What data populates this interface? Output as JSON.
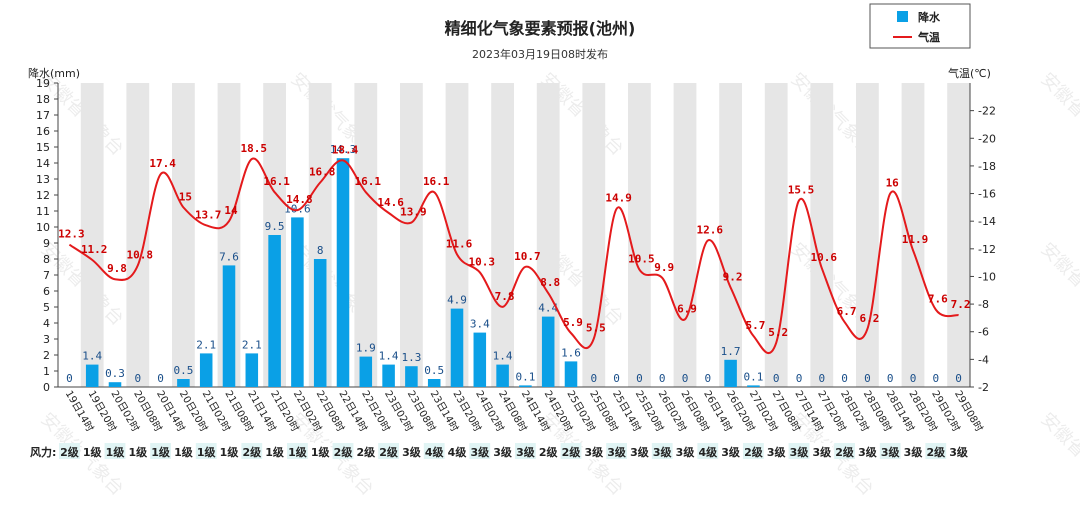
{
  "chart_data": {
    "type": "bar",
    "title": "精细化气象要素预报(池州)",
    "subtitle": "2023年03月19日08时发布",
    "left_axis_label": "降水(mm)",
    "right_axis_label": "气温(℃)",
    "left_ylim": [
      0,
      19
    ],
    "right_ylim": [
      2,
      24
    ],
    "left_ticks": [
      0,
      1,
      2,
      3,
      4,
      5,
      6,
      7,
      8,
      9,
      10,
      11,
      12,
      13,
      14,
      15,
      16,
      17,
      18,
      19
    ],
    "right_ticks": [
      2,
      4,
      6,
      8,
      10,
      12,
      14,
      16,
      18,
      20,
      22
    ],
    "categories": [
      "19日14时",
      "19日20时",
      "20日02时",
      "20日08时",
      "20日14时",
      "20日20时",
      "21日02时",
      "21日08时",
      "21日14时",
      "21日20时",
      "22日02时",
      "22日08时",
      "22日14时",
      "22日20时",
      "23日02时",
      "23日08时",
      "23日14时",
      "23日20时",
      "24日02时",
      "24日08时",
      "24日14时",
      "24日20时",
      "25日02时",
      "25日08时",
      "25日14时",
      "25日20时",
      "26日02时",
      "26日08时",
      "26日14时",
      "26日20时",
      "27日02时",
      "27日08时",
      "27日14时",
      "27日20时",
      "28日02时",
      "28日08时",
      "28日14时",
      "28日20时",
      "29日02时",
      "29日08时"
    ],
    "series": [
      {
        "name": "降水",
        "kind": "bar",
        "color": "#0aa0e6",
        "values": [
          0,
          1.4,
          0.3,
          0,
          0,
          0.5,
          2.1,
          7.6,
          2.1,
          9.5,
          10.6,
          8,
          14.3,
          1.9,
          1.4,
          1.3,
          0.5,
          4.9,
          3.4,
          1.4,
          0.1,
          4.4,
          1.6,
          0,
          0,
          0,
          0,
          0,
          0,
          1.7,
          0.1,
          0,
          0,
          0,
          0,
          0,
          0,
          0,
          0,
          0
        ]
      },
      {
        "name": "气温",
        "kind": "line",
        "color": "#e41a1c",
        "values": [
          12.3,
          11.2,
          9.8,
          10.8,
          17.4,
          15,
          13.7,
          14,
          18.5,
          16.1,
          14.8,
          16.8,
          18.4,
          16.1,
          14.6,
          13.9,
          16.1,
          11.6,
          10.3,
          7.8,
          10.7,
          8.8,
          5.9,
          5.5,
          14.9,
          10.5,
          9.9,
          6.9,
          12.6,
          9.2,
          5.7,
          5.2,
          15.5,
          10.6,
          6.7,
          6.2,
          16,
          11.9,
          7.6,
          7.2
        ]
      }
    ],
    "precip_labels": [
      "0",
      "1.4",
      "0.3",
      "0",
      "0",
      "0.5",
      "2.1",
      "7.6",
      "2.1",
      "9.5",
      "10.6",
      "8",
      "14.3",
      "1.9",
      "1.4",
      "1.3",
      "0.5",
      "4.9",
      "3.4",
      "1.4",
      "0.1",
      "4.4",
      "1.6",
      "0",
      "0",
      "0",
      "0",
      "0",
      "0",
      "1.7",
      "0.1",
      "0",
      "0",
      "0",
      "0",
      "0",
      "0",
      "0",
      "0",
      "0"
    ],
    "temp_labels": [
      "12.3",
      "11.2",
      "9.8",
      "10.8",
      "17.4",
      "15",
      "13.7",
      "14",
      "18.5",
      "16.1",
      "14.8",
      "16.8",
      "18.4",
      "16.1",
      "14.6",
      "13.9",
      "16.1",
      "11.6",
      "10.3",
      "7.8",
      "10.7",
      "8.8",
      "5.9",
      "5.5",
      "14.9",
      "10.5",
      "9.9",
      "6.9",
      "12.6",
      "9.2",
      "5.7",
      "5.2",
      "15.5",
      "10.6",
      "6.7",
      "6.2",
      "16",
      "11.9",
      "7.6",
      "7.2"
    ],
    "wind_label": "风力:",
    "wind": [
      "2级",
      "1级",
      "1级",
      "1级",
      "1级",
      "1级",
      "1级",
      "1级",
      "2级",
      "1级",
      "1级",
      "1级",
      "2级",
      "2级",
      "2级",
      "3级",
      "4级",
      "4级",
      "3级",
      "3级",
      "3级",
      "2级",
      "2级",
      "3级",
      "3级",
      "3级",
      "3级",
      "3级",
      "4级",
      "3级",
      "2级",
      "3级",
      "3级",
      "3级",
      "2级",
      "3级",
      "3级",
      "3级",
      "2级",
      "3级"
    ],
    "legend": [
      {
        "name": "降水",
        "color": "#0aa0e6",
        "shape": "square"
      },
      {
        "name": "气温",
        "color": "#e41a1c",
        "shape": "line"
      }
    ],
    "grid": true,
    "legend_position": "top-right",
    "watermark": "安徽省气象台"
  }
}
